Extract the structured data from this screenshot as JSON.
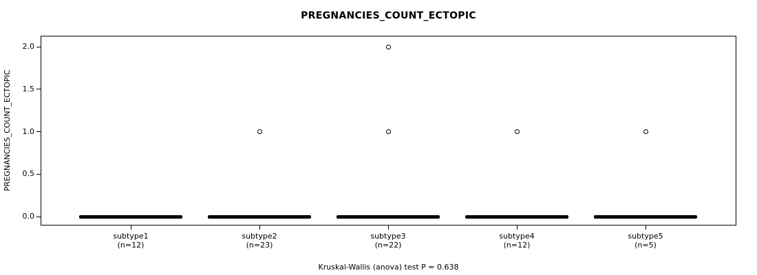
{
  "chart_data": {
    "type": "boxplot",
    "title": "PREGNANCIES_COUNT_ECTOPIC",
    "ylabel": "PREGNANCIES_COUNT_ECTOPIC",
    "xlabel": "",
    "footer": "Kruskal-Wallis (anova) test P = 0.638",
    "ylim": [
      0.0,
      2.0
    ],
    "yticks": [
      0.0,
      0.5,
      1.0,
      1.5,
      2.0
    ],
    "ytick_labels": [
      "0.0",
      "0.5",
      "1.0",
      "1.5",
      "2.0"
    ],
    "grid": false,
    "legend": "none",
    "colors": {
      "box": "#000000",
      "frame": "#000000",
      "text": "#000000",
      "background": "#ffffff",
      "outlier_fill": "#ffffff",
      "outlier_stroke": "#000000"
    },
    "groups": [
      {
        "label": "subtype1",
        "sublabel": "(n=12)",
        "n": 12,
        "whisker_low": 0,
        "q1": 0,
        "median": 0,
        "q3": 0,
        "whisker_high": 0,
        "outliers": []
      },
      {
        "label": "subtype2",
        "sublabel": "(n=23)",
        "n": 23,
        "whisker_low": 0,
        "q1": 0,
        "median": 0,
        "q3": 0,
        "whisker_high": 0,
        "outliers": [
          1
        ]
      },
      {
        "label": "subtype3",
        "sublabel": "(n=22)",
        "n": 22,
        "whisker_low": 0,
        "q1": 0,
        "median": 0,
        "q3": 0,
        "whisker_high": 0,
        "outliers": [
          1,
          2
        ]
      },
      {
        "label": "subtype4",
        "sublabel": "(n=12)",
        "n": 12,
        "whisker_low": 0,
        "q1": 0,
        "median": 0,
        "q3": 0,
        "whisker_high": 0,
        "outliers": [
          1
        ]
      },
      {
        "label": "subtype5",
        "sublabel": "(n=5)",
        "n": 5,
        "whisker_low": 0,
        "q1": 0,
        "median": 0,
        "q3": 0,
        "whisker_high": 0,
        "outliers": [
          1
        ]
      }
    ]
  }
}
